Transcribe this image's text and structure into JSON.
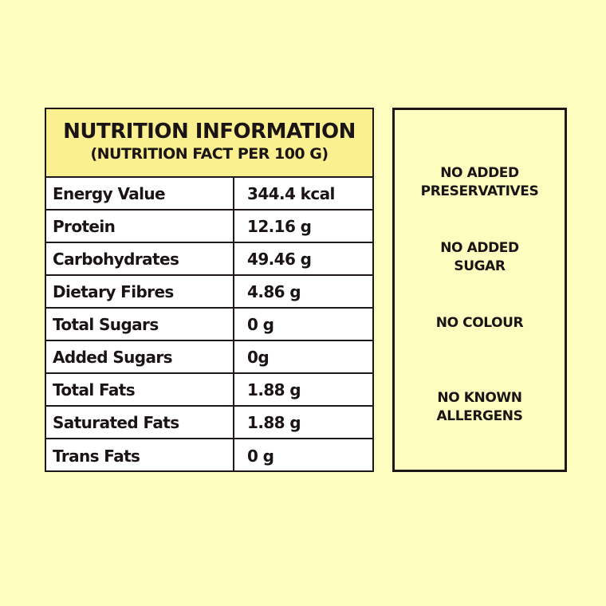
{
  "nutrition": {
    "title": "NUTRITION INFORMATION",
    "subtitle": "(NUTRITION FACT PER 100 G)",
    "rows": [
      {
        "name": "Energy Value",
        "value": "344.4 kcal"
      },
      {
        "name": "Protein",
        "value": "12.16 g"
      },
      {
        "name": "Carbohydrates",
        "value": "49.46 g"
      },
      {
        "name": "Dietary Fibres",
        "value": "4.86 g"
      },
      {
        "name": "Total Sugars",
        "value": "0 g"
      },
      {
        "name": "Added Sugars",
        "value": "0g"
      },
      {
        "name": "Total Fats",
        "value": "1.88 g"
      },
      {
        "name": "Saturated Fats",
        "value": "1.88 g"
      },
      {
        "name": "Trans Fats",
        "value": "0 g"
      }
    ]
  },
  "claims": {
    "items": [
      {
        "line1": "NO ADDED",
        "line2": "PRESERVATIVES"
      },
      {
        "line1": "NO ADDED",
        "line2": "SUGAR"
      },
      {
        "line1": "NO COLOUR",
        "line2": ""
      },
      {
        "line1": "NO KNOWN",
        "line2": "ALLERGENS"
      }
    ]
  },
  "colors": {
    "background": "#fdfdbf",
    "header_fill": "#fbf08f",
    "table_fill": "#ffffff",
    "ink": "#1a1414"
  }
}
